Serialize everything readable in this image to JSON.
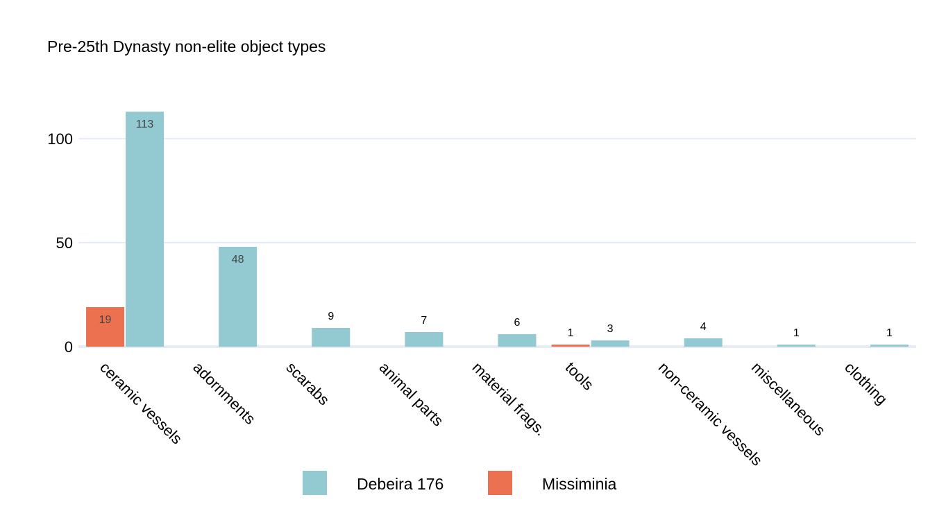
{
  "chart_data": {
    "type": "bar",
    "title": "Pre-25th Dynasty non-elite object types",
    "categories": [
      "ceramic vessels",
      "adornments",
      "scarabs",
      "animal parts",
      "material frags.",
      "tools",
      "non-ceramic vessels",
      "miscellaneous",
      "clothing"
    ],
    "series": [
      {
        "name": "Missiminia",
        "color": "#eb7150",
        "values": [
          19,
          null,
          null,
          null,
          null,
          1,
          null,
          null,
          null
        ]
      },
      {
        "name": "Debeira 176",
        "color": "#93cad1",
        "values": [
          113,
          48,
          9,
          7,
          6,
          3,
          4,
          1,
          1
        ]
      }
    ],
    "ylim": [
      0,
      130
    ],
    "yticks": [
      0,
      50,
      100
    ],
    "grid": true,
    "gridColor": "#e6ecf5",
    "legend": {
      "position": "bottom",
      "order": [
        "Debeira 176",
        "Missiminia"
      ]
    }
  }
}
